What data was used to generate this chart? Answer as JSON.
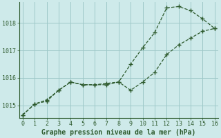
{
  "xlabel": "Graphe pression niveau de la mer (hPa)",
  "background_color": "#ceeaea",
  "grid_color": "#9ec8c8",
  "line_color": "#2d5a2d",
  "marker_color": "#2d5a2d",
  "xlim": [
    -0.3,
    16.3
  ],
  "ylim": [
    1014.55,
    1018.75
  ],
  "yticks": [
    1015,
    1016,
    1017,
    1018
  ],
  "xticks": [
    0,
    1,
    2,
    3,
    4,
    5,
    6,
    7,
    8,
    9,
    10,
    11,
    12,
    13,
    14,
    15,
    16
  ],
  "series1_x": [
    0,
    1,
    2,
    3,
    4,
    5,
    6,
    7,
    8,
    9,
    10,
    11,
    12,
    13,
    14,
    15,
    16
  ],
  "series1_y": [
    1014.65,
    1015.05,
    1015.15,
    1015.55,
    1015.85,
    1015.75,
    1015.75,
    1015.75,
    1015.85,
    1016.5,
    1017.1,
    1017.65,
    1018.55,
    1018.6,
    1018.45,
    1018.15,
    1017.8
  ],
  "series2_x": [
    0,
    1,
    2,
    3,
    4,
    5,
    6,
    7,
    8,
    9,
    10,
    11,
    12,
    13,
    14,
    15,
    16
  ],
  "series2_y": [
    1014.65,
    1015.05,
    1015.2,
    1015.55,
    1015.85,
    1015.75,
    1015.75,
    1015.8,
    1015.85,
    1015.55,
    1015.85,
    1016.2,
    1016.85,
    1017.2,
    1017.45,
    1017.7,
    1017.8
  ],
  "label_fontsize": 6.5,
  "tick_fontsize": 6,
  "xlabel_fontsize": 7
}
